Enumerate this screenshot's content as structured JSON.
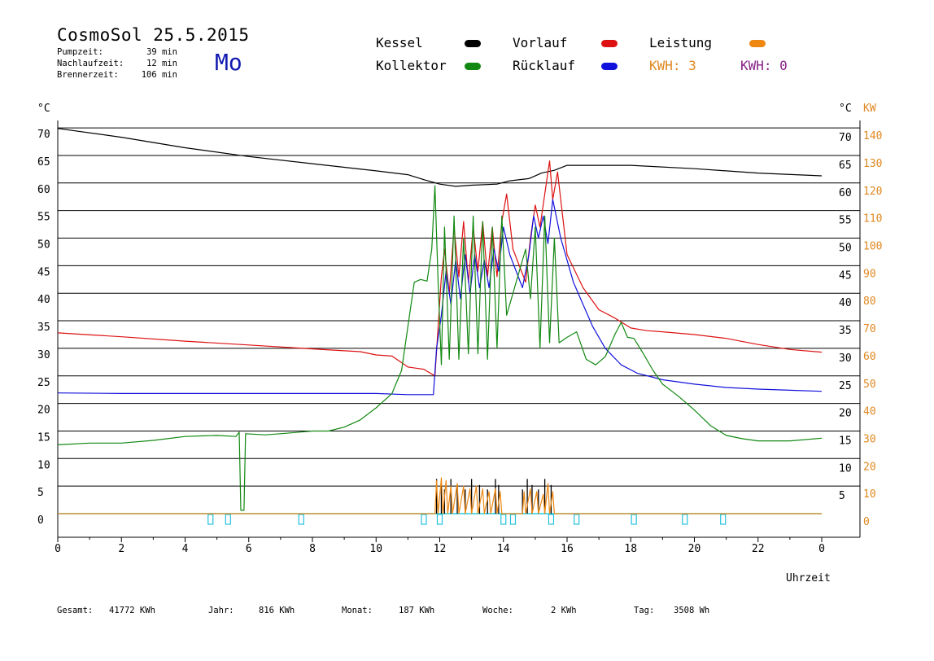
{
  "header": {
    "title": "CosmoSol 25.5.2015",
    "stats": [
      {
        "label": "Pumpzeit:",
        "value": "39 min"
      },
      {
        "label": "Nachlaufzeit:",
        "value": "12 min"
      },
      {
        "label": "Brennerzeit:",
        "value": "106 min"
      }
    ],
    "weekday": "Mo"
  },
  "legend": {
    "kessel": {
      "label": "Kessel",
      "color": "#000000"
    },
    "kollektor": {
      "label": "Kollektor",
      "color": "#118811"
    },
    "vorlauf": {
      "label": "Vorlauf",
      "color": "#dd1111"
    },
    "ruecklauf": {
      "label": "Rücklauf",
      "color": "#1111dd"
    },
    "leistung": {
      "label": "Leistung",
      "color": "#ee8811"
    },
    "kwh_orange": "KWH: 3",
    "kwh_purple": "KWH: 0",
    "kwh_orange_color": "#e08820",
    "kwh_purple_color": "#882288"
  },
  "axes": {
    "left_unit": "°C",
    "right_unit": "°C",
    "right_kw_unit": "KW",
    "x_label": "Uhrzeit"
  },
  "footer": [
    {
      "label": "Gesamt:",
      "value": "41772 KWh"
    },
    {
      "label": "Jahr:",
      "value": "816 KWh"
    },
    {
      "label": "Monat:",
      "value": "187 KWh"
    },
    {
      "label": "Woche:",
      "value": "2 KWh"
    },
    {
      "label": "Tag:",
      "value": "3508 Wh"
    }
  ],
  "chart_data": {
    "type": "line",
    "x_ticks": [
      "0",
      "2",
      "4",
      "6",
      "8",
      "10",
      "12",
      "14",
      "16",
      "18",
      "20",
      "22",
      "0"
    ],
    "xlim": [
      0,
      24
    ],
    "ylim": [
      0,
      70
    ],
    "y_ticks_left": [
      0,
      5,
      10,
      15,
      20,
      25,
      30,
      35,
      40,
      45,
      50,
      55,
      60,
      65,
      70
    ],
    "y_ticks_right": [
      5,
      10,
      15,
      20,
      25,
      30,
      35,
      40,
      45,
      50,
      55,
      60,
      65,
      70
    ],
    "y_ticks_kw": [
      0,
      10,
      20,
      30,
      40,
      50,
      60,
      70,
      80,
      90,
      100,
      110,
      120,
      130,
      140
    ],
    "grid": true,
    "series": [
      {
        "name": "Kessel",
        "color": "#000000",
        "points": [
          [
            0,
            69.9
          ],
          [
            2,
            68.3
          ],
          [
            4,
            66.4
          ],
          [
            6,
            64.8
          ],
          [
            8,
            63.5
          ],
          [
            10,
            62.2
          ],
          [
            11,
            61.5
          ],
          [
            11.5,
            60.6
          ],
          [
            12,
            59.8
          ],
          [
            12.5,
            59.4
          ],
          [
            13,
            59.6
          ],
          [
            13.8,
            59.8
          ],
          [
            14.2,
            60.4
          ],
          [
            14.8,
            60.8
          ],
          [
            15.2,
            61.8
          ],
          [
            15.6,
            62.3
          ],
          [
            16,
            63.2
          ],
          [
            18,
            63.2
          ],
          [
            20,
            62.6
          ],
          [
            22,
            61.8
          ],
          [
            24,
            61.3
          ]
        ]
      },
      {
        "name": "Vorlauf",
        "color": "#dd1111",
        "points": [
          [
            0,
            32.8
          ],
          [
            2,
            32.1
          ],
          [
            4,
            31.3
          ],
          [
            6,
            30.6
          ],
          [
            8,
            29.9
          ],
          [
            9.5,
            29.4
          ],
          [
            10,
            28.8
          ],
          [
            10.5,
            28.6
          ],
          [
            11,
            26.6
          ],
          [
            11.5,
            26.2
          ],
          [
            11.85,
            25.0
          ],
          [
            12.05,
            43
          ],
          [
            12.15,
            48
          ],
          [
            12.3,
            40
          ],
          [
            12.45,
            52
          ],
          [
            12.6,
            43
          ],
          [
            12.75,
            53
          ],
          [
            12.9,
            42
          ],
          [
            13.05,
            52
          ],
          [
            13.2,
            44
          ],
          [
            13.35,
            53
          ],
          [
            13.5,
            43
          ],
          [
            13.65,
            52
          ],
          [
            13.8,
            43
          ],
          [
            13.95,
            53
          ],
          [
            14.1,
            58
          ],
          [
            14.3,
            48
          ],
          [
            14.5,
            45
          ],
          [
            14.7,
            42
          ],
          [
            14.85,
            50
          ],
          [
            15.0,
            56
          ],
          [
            15.15,
            52
          ],
          [
            15.3,
            58
          ],
          [
            15.45,
            64
          ],
          [
            15.55,
            57
          ],
          [
            15.7,
            62
          ],
          [
            16.0,
            47
          ],
          [
            16.5,
            41
          ],
          [
            17.0,
            37
          ],
          [
            17.5,
            35.5
          ],
          [
            18.0,
            33.7
          ],
          [
            18.5,
            33.2
          ],
          [
            19,
            33.0
          ],
          [
            20,
            32.5
          ],
          [
            21,
            31.8
          ],
          [
            22,
            30.7
          ],
          [
            23,
            29.8
          ],
          [
            24,
            29.3
          ]
        ]
      },
      {
        "name": "Rücklauf",
        "color": "#1111dd",
        "points": [
          [
            0,
            21.9
          ],
          [
            2,
            21.8
          ],
          [
            4,
            21.8
          ],
          [
            6,
            21.8
          ],
          [
            8,
            21.8
          ],
          [
            10,
            21.8
          ],
          [
            11,
            21.6
          ],
          [
            11.8,
            21.6
          ],
          [
            11.9,
            30
          ],
          [
            12.05,
            36
          ],
          [
            12.2,
            44
          ],
          [
            12.35,
            38
          ],
          [
            12.5,
            46
          ],
          [
            12.65,
            39
          ],
          [
            12.8,
            47
          ],
          [
            12.95,
            40
          ],
          [
            13.1,
            47
          ],
          [
            13.25,
            41
          ],
          [
            13.4,
            46
          ],
          [
            13.55,
            41
          ],
          [
            13.7,
            48
          ],
          [
            13.85,
            44
          ],
          [
            14.0,
            52
          ],
          [
            14.2,
            47
          ],
          [
            14.4,
            44
          ],
          [
            14.6,
            41
          ],
          [
            14.8,
            47
          ],
          [
            14.95,
            54
          ],
          [
            15.1,
            50
          ],
          [
            15.25,
            54
          ],
          [
            15.4,
            49
          ],
          [
            15.55,
            57
          ],
          [
            15.8,
            50
          ],
          [
            16.2,
            42
          ],
          [
            16.8,
            34
          ],
          [
            17.2,
            30
          ],
          [
            17.7,
            27
          ],
          [
            18.2,
            25.5
          ],
          [
            19,
            24.3
          ],
          [
            20,
            23.5
          ],
          [
            21,
            22.9
          ],
          [
            22,
            22.6
          ],
          [
            23,
            22.4
          ],
          [
            24,
            22.2
          ]
        ]
      },
      {
        "name": "Kollektor",
        "color": "#118811",
        "points": [
          [
            0,
            12.5
          ],
          [
            1,
            12.8
          ],
          [
            2,
            12.8
          ],
          [
            3,
            13.3
          ],
          [
            4,
            14.0
          ],
          [
            5,
            14.2
          ],
          [
            5.6,
            14.0
          ],
          [
            5.7,
            14.8
          ],
          [
            5.75,
            0.6
          ],
          [
            5.85,
            0.6
          ],
          [
            5.9,
            14.5
          ],
          [
            6.5,
            14.3
          ],
          [
            7,
            14.5
          ],
          [
            8,
            15.0
          ],
          [
            8.5,
            15.0
          ],
          [
            9,
            15.7
          ],
          [
            9.5,
            17.0
          ],
          [
            10,
            19.2
          ],
          [
            10.5,
            21.8
          ],
          [
            10.8,
            26.0
          ],
          [
            11.0,
            34.0
          ],
          [
            11.2,
            42.0
          ],
          [
            11.4,
            42.5
          ],
          [
            11.6,
            42.2
          ],
          [
            11.75,
            48.0
          ],
          [
            11.85,
            59.5
          ],
          [
            11.95,
            42
          ],
          [
            12.05,
            27
          ],
          [
            12.15,
            52
          ],
          [
            12.3,
            28
          ],
          [
            12.45,
            54
          ],
          [
            12.6,
            28
          ],
          [
            12.75,
            50
          ],
          [
            12.9,
            29
          ],
          [
            13.05,
            54
          ],
          [
            13.2,
            29
          ],
          [
            13.35,
            53
          ],
          [
            13.5,
            28
          ],
          [
            13.65,
            52
          ],
          [
            13.8,
            30
          ],
          [
            13.95,
            54
          ],
          [
            14.1,
            36
          ],
          [
            14.3,
            40
          ],
          [
            14.5,
            44
          ],
          [
            14.7,
            48
          ],
          [
            14.85,
            39
          ],
          [
            15.0,
            52
          ],
          [
            15.15,
            30
          ],
          [
            15.3,
            54
          ],
          [
            15.45,
            31
          ],
          [
            15.6,
            50
          ],
          [
            15.75,
            31
          ],
          [
            16.0,
            32
          ],
          [
            16.3,
            33
          ],
          [
            16.6,
            28
          ],
          [
            16.9,
            27
          ],
          [
            17.2,
            28.5
          ],
          [
            17.5,
            32.5
          ],
          [
            17.7,
            34.7
          ],
          [
            17.9,
            32
          ],
          [
            18.1,
            31.8
          ],
          [
            18.4,
            29
          ],
          [
            18.7,
            26
          ],
          [
            19,
            23.5
          ],
          [
            19.5,
            21.3
          ],
          [
            20,
            18.8
          ],
          [
            20.5,
            16.0
          ],
          [
            21,
            14.2
          ],
          [
            21.5,
            13.6
          ],
          [
            22,
            13.2
          ],
          [
            23,
            13.2
          ],
          [
            24,
            13.7
          ]
        ]
      },
      {
        "name": "Leistung",
        "color": "#ee8811",
        "points": [
          [
            0,
            0
          ],
          [
            11.85,
            0
          ],
          [
            11.9,
            6
          ],
          [
            11.95,
            0
          ],
          [
            12.05,
            6.5
          ],
          [
            12.1,
            0
          ],
          [
            12.2,
            6
          ],
          [
            12.25,
            0
          ],
          [
            12.35,
            5
          ],
          [
            12.4,
            0
          ],
          [
            12.55,
            5.5
          ],
          [
            12.6,
            0
          ],
          [
            12.75,
            5
          ],
          [
            12.8,
            0
          ],
          [
            12.95,
            4.5
          ],
          [
            13.0,
            0
          ],
          [
            13.15,
            5
          ],
          [
            13.2,
            0
          ],
          [
            13.35,
            4.5
          ],
          [
            13.4,
            0
          ],
          [
            13.55,
            4
          ],
          [
            13.6,
            0
          ],
          [
            13.75,
            4.5
          ],
          [
            13.8,
            0
          ],
          [
            13.9,
            4
          ],
          [
            13.95,
            0
          ],
          [
            14.0,
            0
          ],
          [
            14.6,
            0
          ],
          [
            14.65,
            4
          ],
          [
            14.7,
            0
          ],
          [
            14.85,
            4.5
          ],
          [
            14.9,
            0
          ],
          [
            15.05,
            4
          ],
          [
            15.1,
            0
          ],
          [
            15.25,
            3.5
          ],
          [
            15.3,
            0
          ],
          [
            15.4,
            5.5
          ],
          [
            15.45,
            0
          ],
          [
            15.55,
            4
          ],
          [
            15.6,
            0
          ],
          [
            24,
            0
          ]
        ]
      }
    ],
    "burner_bars": [
      11.9,
      12.05,
      12.15,
      12.35,
      12.55,
      12.8,
      13.0,
      13.25,
      13.5,
      13.75,
      13.85,
      14.6,
      14.75,
      14.9,
      15.1,
      15.3,
      15.5
    ],
    "pump_markers": [
      4.8,
      5.35,
      7.65,
      11.5,
      12.0,
      14.0,
      14.3,
      15.5,
      16.3,
      18.1,
      19.7,
      20.9
    ]
  }
}
